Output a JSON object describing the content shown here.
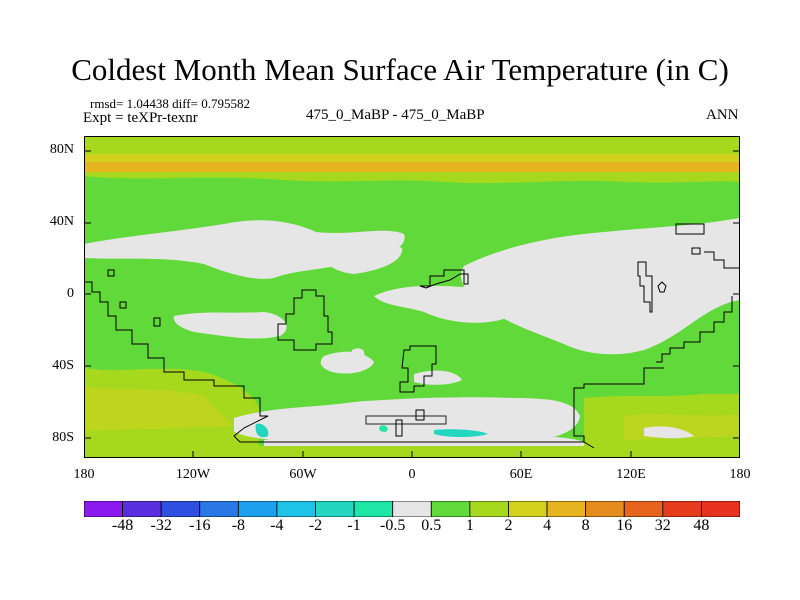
{
  "header": {
    "title": "Coldest Month Mean Surface Air Temperature (in C)",
    "stats": "rmsd= 1.04438 diff= 0.795582",
    "expt": "Expt = teXPr-texnr",
    "center_label": "475_0_MaBP - 475_0_MaBP",
    "season": "ANN"
  },
  "axes": {
    "lat_ticks": [
      "80N",
      "40N",
      "0",
      "40S",
      "80S"
    ],
    "lon_ticks": [
      "180",
      "120W",
      "60W",
      "0",
      "60E",
      "120E",
      "180"
    ]
  },
  "colorbar": {
    "labels": [
      "-48",
      "-32",
      "-16",
      "-8",
      "-4",
      "-2",
      "-1",
      "-0.5",
      "0.5",
      "1",
      "2",
      "4",
      "8",
      "16",
      "32",
      "48"
    ],
    "colors": [
      "#8a1aee",
      "#5a2fe0",
      "#2f4fe0",
      "#2a78e6",
      "#1e9fee",
      "#1ec3e6",
      "#22d6c0",
      "#1ee6a6",
      "#e6e6e6",
      "#62d93a",
      "#a6d91e",
      "#d2d21e",
      "#e6b41e",
      "#e68c1e",
      "#e6641e",
      "#e63c1e",
      "#e6321e"
    ]
  },
  "chart_data": {
    "type": "heatmap",
    "title": "Coldest Month Mean Surface Air Temperature (in C)",
    "x_range": [
      -180,
      180
    ],
    "y_range": [
      -90,
      90
    ],
    "levels": [
      -48,
      -32,
      -16,
      -8,
      -4,
      -2,
      -1,
      -0.5,
      0.5,
      1,
      2,
      4,
      8,
      16,
      32,
      48
    ]
  }
}
